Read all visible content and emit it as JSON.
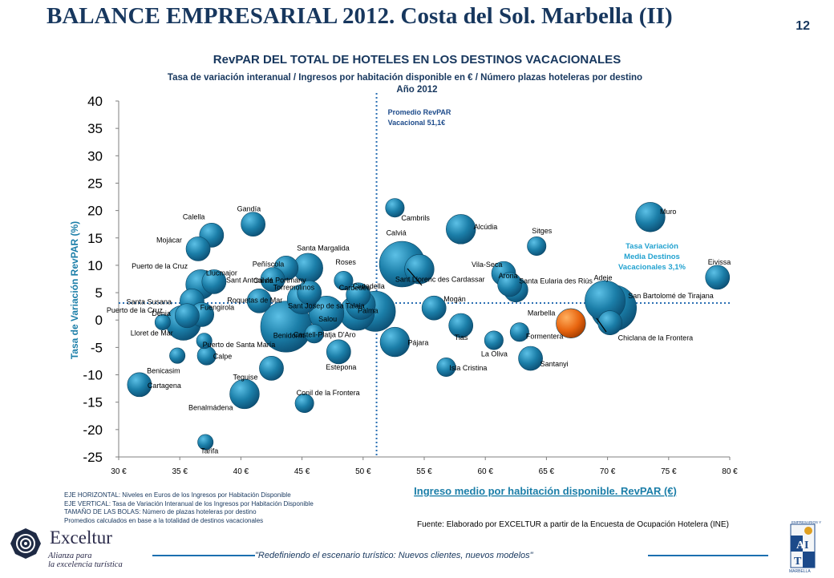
{
  "slide": {
    "title": "BALANCE EMPRESARIAL 2012. Costa del Sol. Marbella (II)",
    "page_number": "12"
  },
  "chart_data": {
    "type": "scatter",
    "title": "RevPAR DEL TOTAL DE HOTELES EN LOS DESTINOS VACACIONALES",
    "subtitle": "Tasa de variación interanual / Ingresos por habitación disponible en € / Número plazas hoteleras por destino",
    "subtitle2": "Año 2012",
    "xlabel": "Ingreso medio por habitación disponible. RevPAR (€)",
    "ylabel": "Tasa de Variación RevPAR (%)",
    "xlim": [
      30,
      80
    ],
    "ylim": [
      -25,
      40
    ],
    "x_ticks": [
      30,
      35,
      40,
      45,
      50,
      55,
      60,
      65,
      70,
      75,
      80
    ],
    "x_tick_labels": [
      "30 €",
      "35 €",
      "40 €",
      "45 €",
      "50 €",
      "55 €",
      "60 €",
      "65 €",
      "70 €",
      "75 €",
      "80 €"
    ],
    "y_ticks": [
      40,
      35,
      30,
      25,
      20,
      15,
      10,
      5,
      0,
      -5,
      -10,
      -15,
      -20,
      -25
    ],
    "avg_revpar_x": 51.1,
    "avg_variation_y": 3.1,
    "avg_revpar_label": [
      "Promedio RevPAR",
      "Vacacional 51,1€"
    ],
    "avg_variation_label": [
      "Tasa Variación",
      "Media Destinos",
      "Vacacionales 3,1%"
    ],
    "colors": {
      "bubble": "#1b7ea8",
      "highlight": "#e8650f",
      "avg_line": "#2a6fb3",
      "axis_text": "#17375e"
    },
    "points": [
      {
        "name": "Muro",
        "x": 73.5,
        "y": 18.8,
        "size": 2
      },
      {
        "name": "Sitges",
        "x": 64.2,
        "y": 13.5,
        "size": 1
      },
      {
        "name": "Eivissa",
        "x": 79.0,
        "y": 7.8,
        "size": 1.5
      },
      {
        "name": "Adeje",
        "x": 69.8,
        "y": 3.5,
        "size": 3
      },
      {
        "name": "San Bartolomé de Tirajana",
        "x": 70.5,
        "y": 2.2,
        "size": 3.5
      },
      {
        "name": "Santa Eularia des Riús",
        "x": 62.5,
        "y": 5.5,
        "size": 1.5
      },
      {
        "name": "Chiclana de la Frontera",
        "x": 70.2,
        "y": -0.5,
        "size": 1.5
      },
      {
        "name": "Marbella",
        "x": 67.0,
        "y": -0.6,
        "size": 2,
        "highlight": true
      },
      {
        "name": "Formentera",
        "x": 62.8,
        "y": -2.2,
        "size": 1
      },
      {
        "name": "Santanyi",
        "x": 63.7,
        "y": -7.0,
        "size": 1.5
      },
      {
        "name": "La Oliva",
        "x": 60.7,
        "y": -3.7,
        "size": 1
      },
      {
        "name": "Vila-Seca",
        "x": 61.5,
        "y": 8.5,
        "size": 1.5
      },
      {
        "name": "Arona",
        "x": 62.0,
        "y": 6.5,
        "size": 1.5
      },
      {
        "name": "Alcúdia",
        "x": 58.0,
        "y": 16.6,
        "size": 2
      },
      {
        "name": "Cambrils",
        "x": 52.6,
        "y": 20.5,
        "size": 1
      },
      {
        "name": "Calviá",
        "x": 53.2,
        "y": 10.2,
        "size": 3.5
      },
      {
        "name": "Sant Llorenc des Cardassar",
        "x": 54.6,
        "y": 9.3,
        "size": 2
      },
      {
        "name": "Mogán",
        "x": 55.8,
        "y": 2.2,
        "size": 1.5
      },
      {
        "name": "Tias",
        "x": 58.0,
        "y": -1.0,
        "size": 1.5
      },
      {
        "name": "Pájara",
        "x": 52.6,
        "y": -4.0,
        "size": 2
      },
      {
        "name": "Isla Cristina",
        "x": 56.8,
        "y": -8.6,
        "size": 1
      },
      {
        "name": "Palma",
        "x": 51.0,
        "y": 1.6,
        "size": 3
      },
      {
        "name": "Ciutadella",
        "x": 49.8,
        "y": 2.8,
        "size": 2
      },
      {
        "name": "Cardedeu",
        "x": 49.6,
        "y": 4.6,
        "size": 1.5
      },
      {
        "name": "Roses",
        "x": 48.4,
        "y": 7.2,
        "size": 1
      },
      {
        "name": "Sant Josep de sa Talaia",
        "x": 49.5,
        "y": 1.3,
        "size": 2.5
      },
      {
        "name": "Salou",
        "x": 47.0,
        "y": 1.2,
        "size": 2.5
      },
      {
        "name": "Castell-Platja D'Aro",
        "x": 46.0,
        "y": -2.5,
        "size": 1
      },
      {
        "name": "Estepona",
        "x": 48.0,
        "y": -5.8,
        "size": 1.5
      },
      {
        "name": "Conil de la Frontera",
        "x": 45.2,
        "y": -15.2,
        "size": 1
      },
      {
        "name": "Benidorm",
        "x": 43.7,
        "y": -1.2,
        "size": 4
      },
      {
        "name": "Torremolinos",
        "x": 45.0,
        "y": 3.8,
        "size": 2
      },
      {
        "name": "Calviá",
        "x": 45.6,
        "y": 5.0,
        "size": 1.5
      },
      {
        "name": "Santa Margalida",
        "x": 45.5,
        "y": 9.5,
        "size": 2
      },
      {
        "name": "Peñíscola",
        "x": 43.7,
        "y": 9.5,
        "size": 1.5
      },
      {
        "name": "Sant Antoni de Portmany",
        "x": 42.6,
        "y": 7.4,
        "size": 1.5
      },
      {
        "name": "Roquetas de Mar",
        "x": 41.5,
        "y": 3.5,
        "size": 1.5
      },
      {
        "name": "Llucmajor",
        "x": 37.8,
        "y": 7.0,
        "size": 1.5
      },
      {
        "name": "Puerto de la Cruz",
        "x": 36.7,
        "y": 6.5,
        "size": 2
      },
      {
        "name": "Santa Susana",
        "x": 36.0,
        "y": 3.5,
        "size": 1.5
      },
      {
        "name": "Fuengirola",
        "x": 36.8,
        "y": 1.0,
        "size": 1.5
      },
      {
        "name": "Denia",
        "x": 35.6,
        "y": 0.8,
        "size": 1.5
      },
      {
        "name": "Lloret de Mar",
        "x": 35.3,
        "y": -0.5,
        "size": 2.5
      },
      {
        "name": "Puerto de Santa María",
        "x": 37.0,
        "y": -3.8,
        "size": 0.7
      },
      {
        "name": "Calpe",
        "x": 37.2,
        "y": -6.5,
        "size": 1
      },
      {
        "name": "Benicasim",
        "x": 34.8,
        "y": -6.5,
        "size": 0.7
      },
      {
        "name": "Cartagena",
        "x": 31.7,
        "y": -11.8,
        "size": 1.5
      },
      {
        "name": "Teguise",
        "x": 42.5,
        "y": -8.8,
        "size": 1.5
      },
      {
        "name": "Benalmádena",
        "x": 40.3,
        "y": -13.5,
        "size": 2
      },
      {
        "name": "Tarifa",
        "x": 37.1,
        "y": -22.3,
        "size": 0.7
      },
      {
        "name": "Calella",
        "x": 37.6,
        "y": 15.5,
        "size": 1.5
      },
      {
        "name": "Mojácar",
        "x": 36.5,
        "y": 13.0,
        "size": 1.5
      },
      {
        "name": "Gandía",
        "x": 41.0,
        "y": 17.5,
        "size": 1.5
      },
      {
        "name": "Puerto de la Cruz",
        "x": 33.6,
        "y": -0.4,
        "size": 0.7
      }
    ]
  },
  "notes": [
    "EJE HORIZONTAL: Niveles en Euros de los Ingresos por Habitación Disponible",
    "EJE VERTICAL: Tasa de Variación Interanual de los Ingresos por Habitación Disponible",
    "TAMAÑO DE LAS BOLAS: Número de plazas hoteleras por destino",
    "Promedios calculados en base a la totalidad de destinos vacacionales"
  ],
  "source": "Fuente: Elaborado por EXCELTUR a partir de la Encuesta de Ocupación Hotelera (INE)",
  "footer": {
    "logo_name": "Exceltur",
    "logo_tagline_1": "Alianza para",
    "logo_tagline_2": "la excelencia turística",
    "slogan": "\"Redefiniendo el escenario turístico: Nuevos clientes, nuevos modelos\"",
    "right_logo_top": "EMPRESARIOS Y",
    "right_logo_bottom": "MARBELLA"
  }
}
